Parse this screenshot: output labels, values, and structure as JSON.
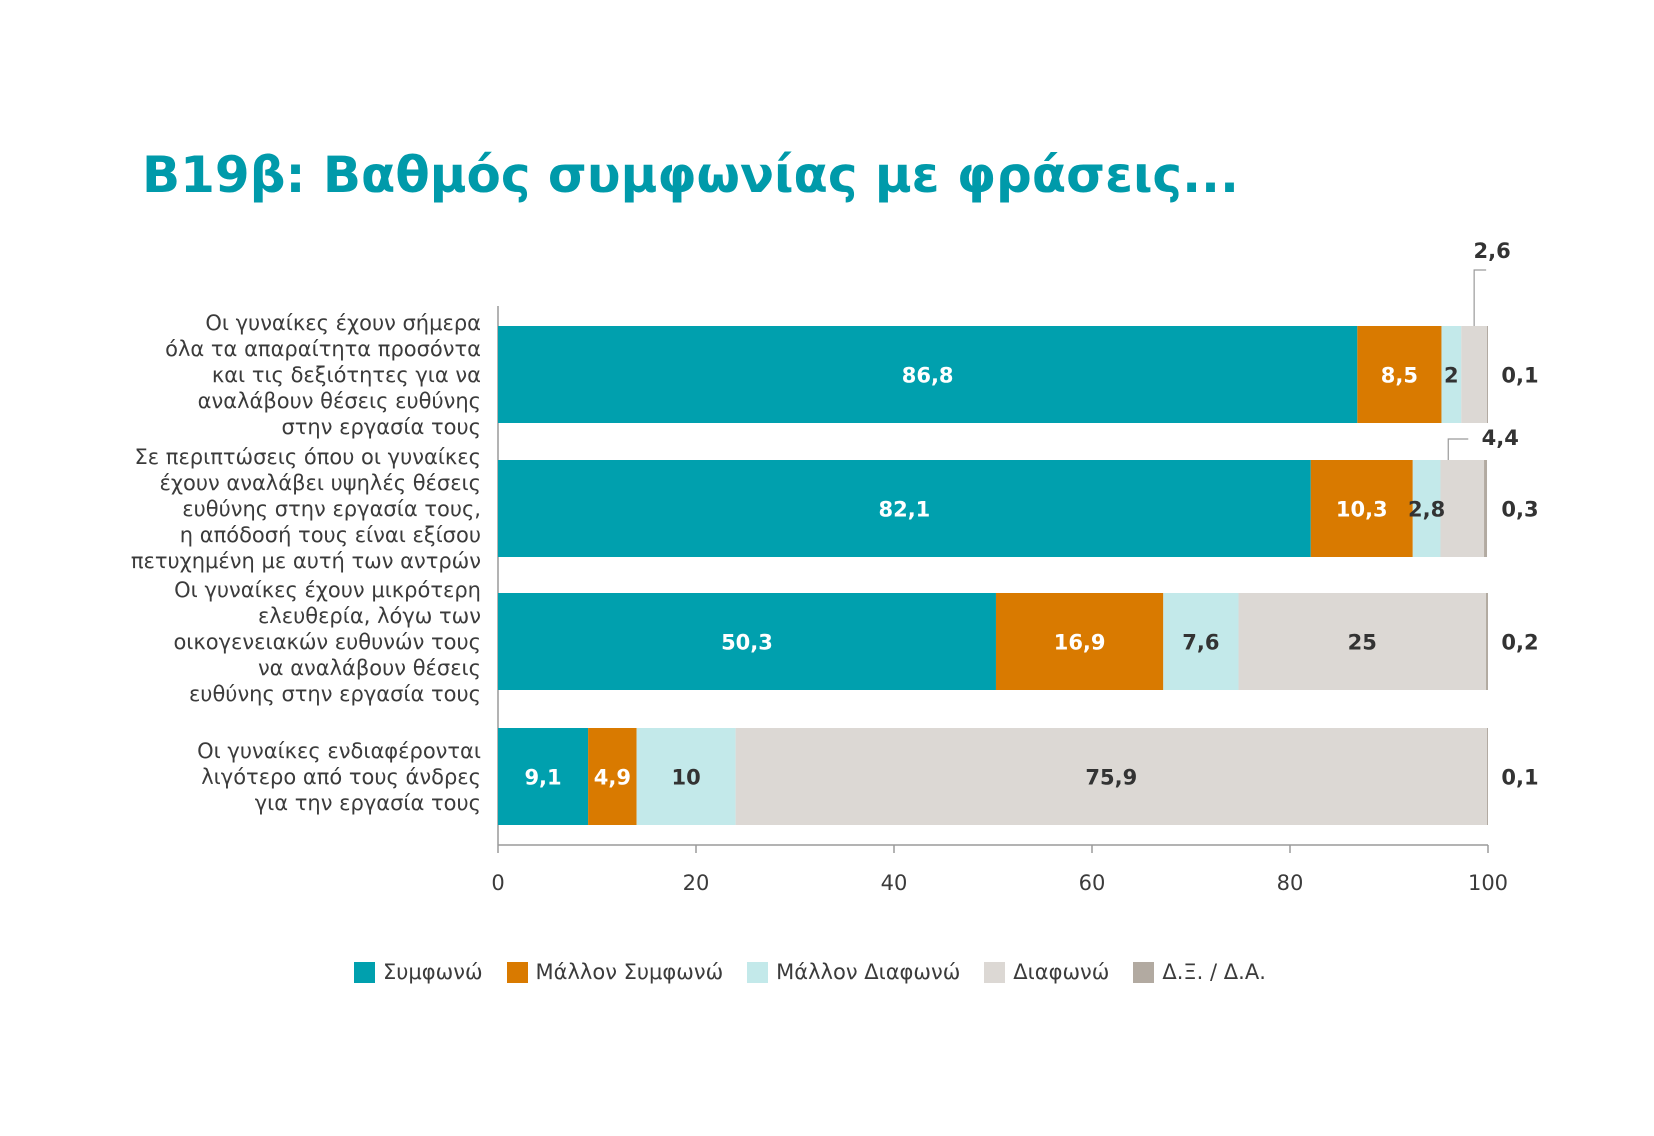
{
  "title": "B19β: Βαθμός συμφωνίας με φράσεις...",
  "chart_data": {
    "type": "bar",
    "orientation": "horizontal",
    "stacked": true,
    "title": "B19β: Βαθμός συμφωνίας με φράσεις...",
    "xlim": [
      0,
      100
    ],
    "xticks": [
      "0",
      "20",
      "40",
      "60",
      "80",
      "100"
    ],
    "grid": false,
    "legend_position": "bottom",
    "categories": [
      [
        "Οι γυναίκες έχουν σήμερα",
        "όλα τα απαραίτητα προσόντα",
        "και τις δεξιότητες για να",
        "αναλάβουν θέσεις ευθύνης",
        "στην εργασία τους"
      ],
      [
        "Σε περιπτώσεις όπου οι γυναίκες",
        "έχουν αναλάβει υψηλές θέσεις",
        "ευθύνης στην εργασία τους,",
        "η απόδοσή τους είναι εξίσου",
        "πετυχημένη με αυτή των αντρών"
      ],
      [
        "Οι γυναίκες έχουν μικρότερη",
        "ελευθερία, λόγω των",
        "οικογενειακών ευθυνών τους",
        "να αναλάβουν θέσεις",
        "ευθύνης στην εργασία τους"
      ],
      [
        "Οι γυναίκες ενδιαφέρονται",
        "λιγότερο από τους άνδρες",
        "για την εργασία τους"
      ]
    ],
    "series": [
      {
        "name": "Συμφωνώ",
        "color": "#00a0ae",
        "label_color": "#ffffff",
        "values": [
          86.8,
          82.1,
          50.3,
          9.1
        ],
        "labels": [
          "86,8",
          "82,1",
          "50,3",
          "9,1"
        ]
      },
      {
        "name": "Μάλλον Συμφωνώ",
        "color": "#d97a00",
        "label_color": "#ffffff",
        "values": [
          8.5,
          10.3,
          16.9,
          4.9
        ],
        "labels": [
          "8,5",
          "10,3",
          "16,9",
          "4,9"
        ]
      },
      {
        "name": "Μάλλον Διαφωνώ",
        "color": "#c3e9ea",
        "label_color": "#333333",
        "values": [
          2,
          2.8,
          7.6,
          10
        ],
        "labels": [
          "2",
          "2,8",
          "7,6",
          "10"
        ]
      },
      {
        "name": "Διαφωνώ",
        "color": "#dcd8d4",
        "label_color": "#333333",
        "values": [
          2.6,
          4.4,
          25,
          75.9
        ],
        "labels": [
          "2,6",
          "4,4",
          "25",
          "75,9"
        ]
      },
      {
        "name": "Δ.Ξ. / Δ.Α.",
        "color": "#b2aaa1",
        "label_color": "#333333",
        "values": [
          0.1,
          0.3,
          0.2,
          0.1
        ],
        "labels": [
          "0,1",
          "0,3",
          "0,2",
          "0,1"
        ]
      }
    ]
  }
}
